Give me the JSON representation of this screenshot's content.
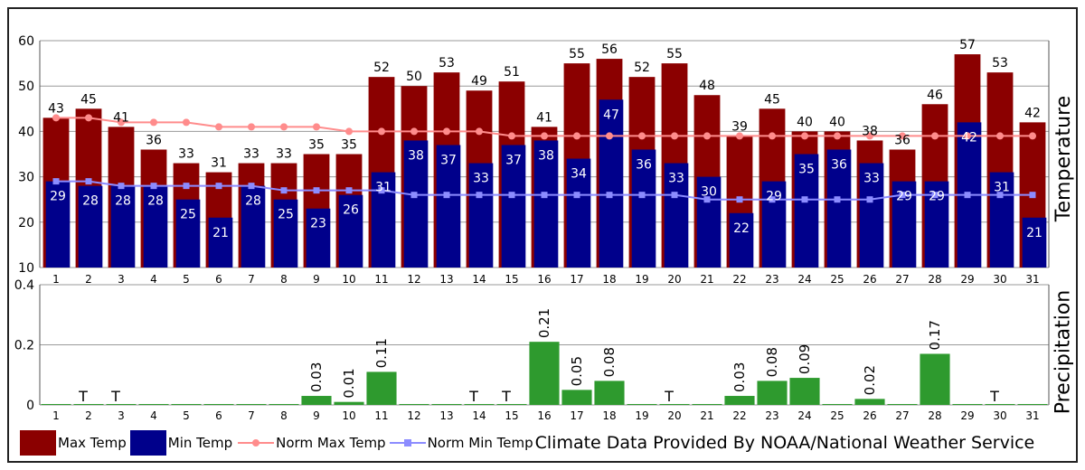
{
  "chart_data": [
    {
      "type": "bar",
      "ylabel": "Temperature",
      "ylim": [
        10,
        60
      ],
      "yticks": [
        10,
        20,
        30,
        40,
        50,
        60
      ],
      "grid": true,
      "categories": [
        "1",
        "2",
        "3",
        "4",
        "5",
        "6",
        "7",
        "8",
        "9",
        "10",
        "11",
        "12",
        "13",
        "14",
        "15",
        "16",
        "17",
        "18",
        "19",
        "20",
        "21",
        "22",
        "23",
        "24",
        "25",
        "26",
        "27",
        "28",
        "29",
        "30",
        "31"
      ],
      "series": [
        {
          "name": "Max Temp",
          "color": "#8b0000",
          "values": [
            43,
            45,
            41,
            36,
            33,
            31,
            33,
            33,
            35,
            35,
            52,
            50,
            53,
            49,
            51,
            41,
            55,
            56,
            52,
            55,
            48,
            39,
            45,
            40,
            40,
            38,
            36,
            46,
            57,
            53,
            42
          ]
        },
        {
          "name": "Min Temp",
          "color": "#00008b",
          "values": [
            29,
            28,
            28,
            28,
            25,
            21,
            28,
            25,
            23,
            26,
            31,
            38,
            37,
            33,
            37,
            38,
            34,
            47,
            36,
            33,
            30,
            22,
            29,
            35,
            36,
            33,
            29,
            29,
            42,
            31,
            21
          ]
        },
        {
          "name": "Norm Max Temp",
          "color": "#ff8c8c",
          "values": [
            43,
            43,
            42,
            42,
            42,
            41,
            41,
            41,
            41,
            40,
            40,
            40,
            40,
            40,
            39,
            39,
            39,
            39,
            39,
            39,
            39,
            39,
            39,
            39,
            39,
            39,
            39,
            39,
            39,
            39,
            39
          ]
        },
        {
          "name": "Norm Min Temp",
          "color": "#8c8cff",
          "values": [
            29,
            29,
            28,
            28,
            28,
            28,
            28,
            27,
            27,
            27,
            27,
            26,
            26,
            26,
            26,
            26,
            26,
            26,
            26,
            26,
            25,
            25,
            25,
            25,
            25,
            25,
            26,
            26,
            26,
            26,
            26
          ]
        }
      ]
    },
    {
      "type": "bar",
      "ylabel": "Precipitation",
      "ylim": [
        0,
        0.4
      ],
      "yticks": [
        "0",
        "0.2",
        "0.4"
      ],
      "grid": true,
      "categories": [
        "1",
        "2",
        "3",
        "4",
        "5",
        "6",
        "7",
        "8",
        "9",
        "10",
        "11",
        "12",
        "13",
        "14",
        "15",
        "16",
        "17",
        "18",
        "19",
        "20",
        "21",
        "22",
        "23",
        "24",
        "25",
        "26",
        "27",
        "28",
        "29",
        "30",
        "31"
      ],
      "color": "#2e9a2e",
      "values": [
        0,
        0,
        0,
        0,
        0,
        0,
        0,
        0,
        0.03,
        0.01,
        0.11,
        0,
        0,
        0,
        0,
        0.21,
        0.05,
        0.08,
        0,
        0,
        0,
        0.03,
        0.08,
        0.09,
        0,
        0.02,
        0,
        0.17,
        0,
        0,
        0
      ],
      "labels": [
        "",
        "T",
        "T",
        "",
        "",
        "",
        "",
        "",
        "0.03",
        "0.01",
        "0.11",
        "",
        "",
        "T",
        "T",
        "0.21",
        "0.05",
        "0.08",
        "",
        "T",
        "",
        "0.03",
        "0.08",
        "0.09",
        "",
        "0.02",
        "",
        "0.17",
        "",
        "T",
        ""
      ]
    }
  ],
  "legend": {
    "max_temp": "Max Temp",
    "min_temp": "Min Temp",
    "norm_max": "Norm Max Temp",
    "norm_min": "Norm Min Temp",
    "credit": "Climate Data Provided By NOAA/National Weather Service"
  }
}
